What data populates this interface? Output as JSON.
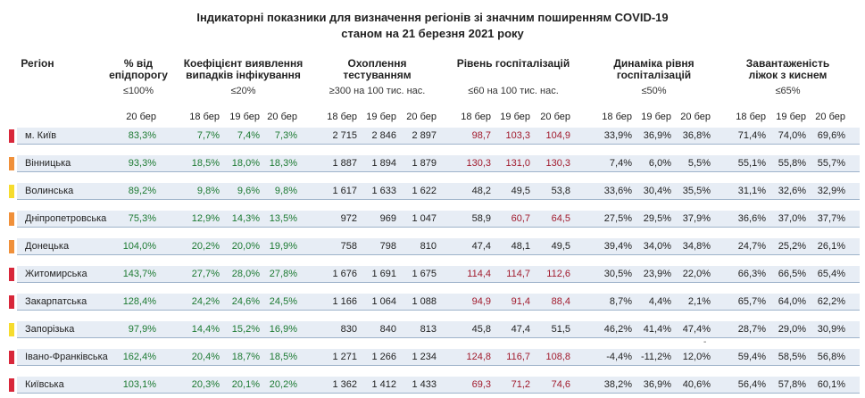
{
  "title": {
    "line1": "Індикаторні показники для визначення регіонів зі значним поширенням COVID-19",
    "line2": "станом на 21 березня 2021 року"
  },
  "headers": {
    "region": "Регіон",
    "epidemic_threshold": {
      "line1": "% від",
      "line2": "епідпорогу",
      "threshold": "≤100%"
    },
    "detection_coefficient": {
      "line1": "Коефіцієнт виявлення",
      "line2": "випадків інфікування",
      "threshold": "≤20%"
    },
    "testing_coverage": {
      "line1": "Охоплення тестуванням",
      "threshold": "≥300 на 100 тис. нас."
    },
    "hospitalization_level": {
      "line1": "Рівень госпіталізацій",
      "threshold": "≤60 на 100 тис. нас."
    },
    "hospitalization_dynamics": {
      "line1": "Динаміка рівня",
      "line2": "госпіталізацій",
      "threshold": "≤50%"
    },
    "oxygen_beds_load": {
      "line1": "Завантаженість",
      "line2": "ліжок з киснем",
      "threshold": "≤65%"
    }
  },
  "date_labels": {
    "d18": "18 бер",
    "d19": "19 бер",
    "d20": "20 бер"
  },
  "colors": {
    "marker_red": "#d8273a",
    "marker_orange": "#f0903a",
    "marker_yellow": "#f6dc2e",
    "value_green": "#1d7a32",
    "value_red": "#a11a2c",
    "row_band": "#e7edf5"
  },
  "stray_mark": "-",
  "rows": [
    {
      "region": "м. Київ",
      "marker": "red",
      "epi": "83,3%",
      "det": [
        "7,7%",
        "7,4%",
        "7,3%"
      ],
      "test": [
        "2 715",
        "2 846",
        "2 897"
      ],
      "hosp": [
        "98,7",
        "103,3",
        "104,9"
      ],
      "dyn": [
        "33,9%",
        "36,9%",
        "36,8%"
      ],
      "beds": [
        "71,4%",
        "74,0%",
        "69,6%"
      ],
      "c_epi": "green",
      "c_det": [
        "green",
        "green",
        "green"
      ],
      "c_hosp": [
        "red",
        "red",
        "red"
      ]
    },
    {
      "region": "Вінницька",
      "marker": "orange",
      "epi": "93,3%",
      "det": [
        "18,5%",
        "18,0%",
        "18,3%"
      ],
      "test": [
        "1 887",
        "1 894",
        "1 879"
      ],
      "hosp": [
        "130,3",
        "131,0",
        "130,3"
      ],
      "dyn": [
        "7,4%",
        "6,0%",
        "5,5%"
      ],
      "beds": [
        "55,1%",
        "55,8%",
        "55,7%"
      ],
      "c_epi": "green",
      "c_det": [
        "green",
        "green",
        "green"
      ],
      "c_hosp": [
        "red",
        "red",
        "red"
      ]
    },
    {
      "region": "Волинська",
      "marker": "yellow",
      "epi": "89,2%",
      "det": [
        "9,8%",
        "9,6%",
        "9,8%"
      ],
      "test": [
        "1 617",
        "1 633",
        "1 622"
      ],
      "hosp": [
        "48,2",
        "49,5",
        "53,8"
      ],
      "dyn": [
        "33,6%",
        "30,4%",
        "35,5%"
      ],
      "beds": [
        "31,1%",
        "32,6%",
        "32,9%"
      ],
      "c_epi": "green",
      "c_det": [
        "green",
        "green",
        "green"
      ],
      "c_hosp": [
        "dark",
        "dark",
        "dark"
      ]
    },
    {
      "region": "Дніпропетровська",
      "marker": "orange",
      "epi": "75,3%",
      "det": [
        "12,9%",
        "14,3%",
        "13,5%"
      ],
      "test": [
        "972",
        "969",
        "1 047"
      ],
      "hosp": [
        "58,9",
        "60,7",
        "64,5"
      ],
      "dyn": [
        "27,5%",
        "29,5%",
        "37,9%"
      ],
      "beds": [
        "36,6%",
        "37,0%",
        "37,7%"
      ],
      "c_epi": "green",
      "c_det": [
        "green",
        "green",
        "green"
      ],
      "c_hosp": [
        "dark",
        "red",
        "red"
      ]
    },
    {
      "region": "Донецька",
      "marker": "orange",
      "epi": "104,0%",
      "det": [
        "20,2%",
        "20,0%",
        "19,9%"
      ],
      "test": [
        "758",
        "798",
        "810"
      ],
      "hosp": [
        "47,4",
        "48,1",
        "49,5"
      ],
      "dyn": [
        "39,4%",
        "34,0%",
        "34,8%"
      ],
      "beds": [
        "24,7%",
        "25,2%",
        "26,1%"
      ],
      "c_epi": "green",
      "c_det": [
        "green",
        "green",
        "green"
      ],
      "c_hosp": [
        "dark",
        "dark",
        "dark"
      ]
    },
    {
      "region": "Житомирська",
      "marker": "red",
      "epi": "143,7%",
      "det": [
        "27,7%",
        "28,0%",
        "27,8%"
      ],
      "test": [
        "1 676",
        "1 691",
        "1 675"
      ],
      "hosp": [
        "114,4",
        "114,7",
        "112,6"
      ],
      "dyn": [
        "30,5%",
        "23,9%",
        "22,0%"
      ],
      "beds": [
        "66,3%",
        "66,5%",
        "65,4%"
      ],
      "c_epi": "green",
      "c_det": [
        "green",
        "green",
        "green"
      ],
      "c_hosp": [
        "red",
        "red",
        "red"
      ]
    },
    {
      "region": "Закарпатська",
      "marker": "red",
      "epi": "128,4%",
      "det": [
        "24,2%",
        "24,6%",
        "24,5%"
      ],
      "test": [
        "1 166",
        "1 064",
        "1 088"
      ],
      "hosp": [
        "94,9",
        "91,4",
        "88,4"
      ],
      "dyn": [
        "8,7%",
        "4,4%",
        "2,1%"
      ],
      "beds": [
        "65,7%",
        "64,0%",
        "62,2%"
      ],
      "c_epi": "green",
      "c_det": [
        "green",
        "green",
        "green"
      ],
      "c_hosp": [
        "red",
        "red",
        "red"
      ]
    },
    {
      "region": "Запорізька",
      "marker": "yellow",
      "epi": "97,9%",
      "det": [
        "14,4%",
        "15,2%",
        "16,9%"
      ],
      "test": [
        "830",
        "840",
        "813"
      ],
      "hosp": [
        "45,8",
        "47,4",
        "51,5"
      ],
      "dyn": [
        "46,2%",
        "41,4%",
        "47,4%"
      ],
      "beds": [
        "28,7%",
        "29,0%",
        "30,9%"
      ],
      "c_epi": "green",
      "c_det": [
        "green",
        "green",
        "green"
      ],
      "c_hosp": [
        "dark",
        "dark",
        "dark"
      ]
    },
    {
      "region": "Івано-Франківська",
      "marker": "red",
      "epi": "162,4%",
      "det": [
        "20,4%",
        "18,7%",
        "18,5%"
      ],
      "test": [
        "1 271",
        "1 266",
        "1 234"
      ],
      "hosp": [
        "124,8",
        "116,7",
        "108,8"
      ],
      "dyn": [
        "-4,4%",
        "-11,2%",
        "12,0%"
      ],
      "beds": [
        "59,4%",
        "58,5%",
        "56,8%"
      ],
      "c_epi": "green",
      "c_det": [
        "green",
        "green",
        "green"
      ],
      "c_hosp": [
        "red",
        "red",
        "red"
      ]
    },
    {
      "region": "Київська",
      "marker": "red",
      "epi": "103,1%",
      "det": [
        "20,3%",
        "20,1%",
        "20,2%"
      ],
      "test": [
        "1 362",
        "1 412",
        "1 433"
      ],
      "hosp": [
        "69,3",
        "71,2",
        "74,6"
      ],
      "dyn": [
        "38,2%",
        "36,9%",
        "40,6%"
      ],
      "beds": [
        "56,4%",
        "57,8%",
        "60,1%"
      ],
      "c_epi": "green",
      "c_det": [
        "green",
        "green",
        "green"
      ],
      "c_hosp": [
        "red",
        "red",
        "red"
      ]
    }
  ]
}
